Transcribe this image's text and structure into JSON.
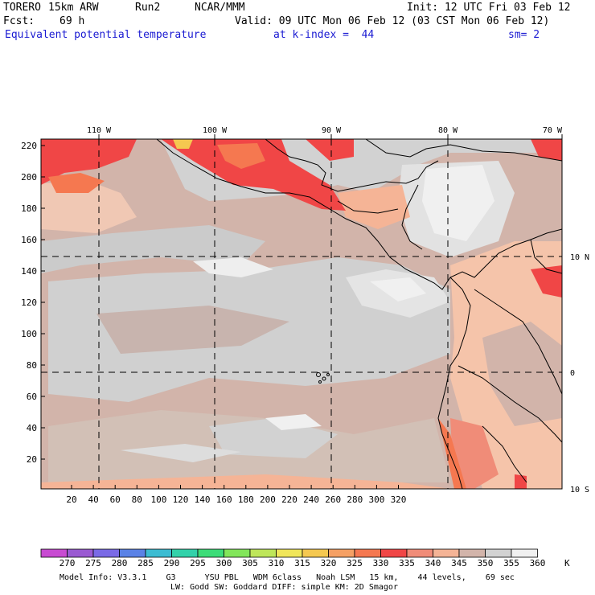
{
  "header": {
    "model": "TORERO",
    "resolution": "15km ARW",
    "run": "Run2",
    "org": "NCAR/MMM",
    "init": "Init: 12 UTC Fri 03 Feb 12",
    "fcst_label": "Fcst:",
    "fcst_value": "69 h",
    "valid": "Valid: 09 UTC Mon 06 Feb 12 (03 CST Mon 06 Feb 12)",
    "field": "Equivalent potential temperature",
    "level": "at k-index =  44",
    "smoothing": "sm= 2"
  },
  "top_axis": {
    "labels": [
      "110 W",
      "100 W",
      "90 W",
      "80 W",
      "70 W"
    ]
  },
  "left_axis": {
    "labels": [
      "220",
      "200",
      "180",
      "160",
      "140",
      "120",
      "100",
      "80",
      "60",
      "40",
      "20"
    ]
  },
  "bottom_axis": {
    "labels": [
      "20",
      "40",
      "60",
      "80",
      "100",
      "120",
      "140",
      "160",
      "180",
      "200",
      "220",
      "240",
      "260",
      "280",
      "300",
      "320"
    ]
  },
  "right_axis": {
    "labels": [
      "10 N",
      "0",
      "10 S"
    ]
  },
  "colorbar": {
    "unit": "K",
    "labels": [
      "270",
      "275",
      "280",
      "285",
      "290",
      "295",
      "300",
      "305",
      "310",
      "315",
      "320",
      "325",
      "330",
      "335",
      "340",
      "345",
      "350",
      "355",
      "360"
    ],
    "colors": [
      "#c84bd2",
      "#9a5ad2",
      "#7a6ae6",
      "#5a82e6",
      "#3cbcd2",
      "#32d2aa",
      "#3cdc78",
      "#82e65a",
      "#bee65a",
      "#f0e65a",
      "#f5c850",
      "#f5a064",
      "#f57850",
      "#f04646",
      "#f08c78",
      "#f5b496",
      "#d2b4aa",
      "#d2d2d2",
      "#f0f0f0"
    ]
  },
  "footer": {
    "line1": "Model Info: V3.3.1    G3      YSU PBL   WDM 6class   Noah LSM   15 km,    44 levels,    69 sec",
    "line2": "LW: Godd SW: Goddard DIFF: simple KM: 2D Smagor"
  }
}
